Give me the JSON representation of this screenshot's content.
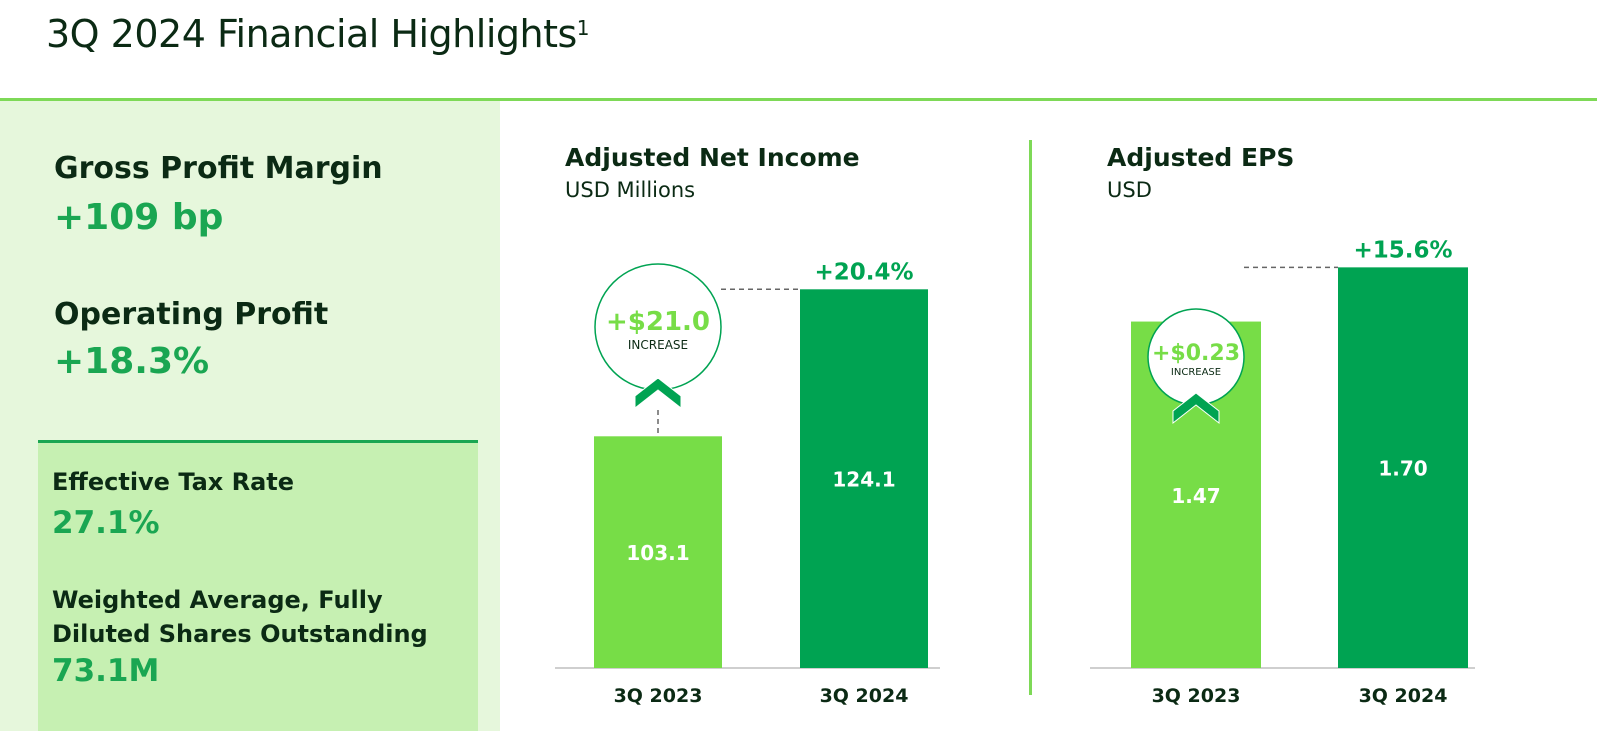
{
  "header": {
    "title": "3Q 2024 Financial Highlights",
    "footnote": "1"
  },
  "left_panel": {
    "gross_profit_margin": {
      "label": "Gross Profit Margin",
      "value": "+109 bp"
    },
    "operating_profit": {
      "label": "Operating Profit",
      "value": "+18.3%"
    },
    "effective_tax_rate": {
      "label": "Effective Tax Rate",
      "value": "27.1%"
    },
    "shares": {
      "label_line1": "Weighted Average, Fully",
      "label_line2": "Diluted Shares Outstanding",
      "value": "73.1M"
    }
  },
  "colors": {
    "dark_green": "#00a352",
    "light_green": "#77dd47",
    "panel": "#e6f7dc",
    "box": "#c6f0b2"
  },
  "chart_data": [
    {
      "type": "bar",
      "title": "Adjusted Net Income",
      "subtitle": "USD Millions",
      "categories": [
        "3Q 2023",
        "3Q 2024"
      ],
      "values": [
        103.1,
        124.1
      ],
      "value_labels": [
        "103.1",
        "124.1"
      ],
      "ylim": [
        70,
        130
      ],
      "change_label": "+20.4%",
      "increase_value": "+$21.0",
      "increase_word": "INCREASE"
    },
    {
      "type": "bar",
      "title": "Adjusted EPS",
      "subtitle": "USD",
      "categories": [
        "3Q 2023",
        "3Q 2024"
      ],
      "values": [
        1.47,
        1.7
      ],
      "value_labels": [
        "1.47",
        "1.70"
      ],
      "ylim": [
        0,
        1.85
      ],
      "change_label": "+15.6%",
      "increase_value": "+$0.23",
      "increase_word": "INCREASE"
    }
  ]
}
